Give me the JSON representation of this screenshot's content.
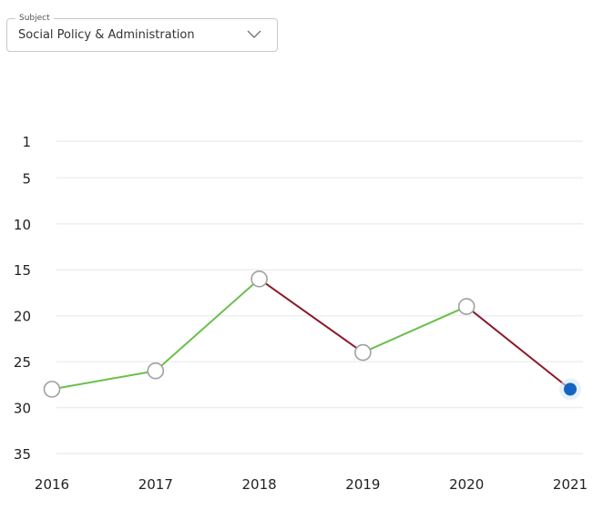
{
  "subject_select": {
    "label": "Subject",
    "value": "Social Policy & Administration",
    "icon": "chevron-down-icon"
  },
  "chart_data": {
    "type": "line",
    "title": "",
    "xlabel": "",
    "ylabel": "",
    "x": [
      "2016",
      "2017",
      "2018",
      "2019",
      "2020",
      "2021"
    ],
    "series": [
      {
        "values": [
          28,
          26,
          16,
          24,
          19,
          28
        ]
      }
    ],
    "y_reversed": true,
    "y_ticks": [
      1,
      5,
      10,
      15,
      20,
      25,
      30,
      35
    ],
    "ylim": [
      1,
      35
    ],
    "grid": true,
    "colors": {
      "improving": "#6abf4b",
      "declining": "#8b1a2c",
      "marker_fill": "#ffffff",
      "marker_stroke": "#a0a0a0",
      "highlight": "#1565c0",
      "grid": "#eeeeee"
    }
  }
}
